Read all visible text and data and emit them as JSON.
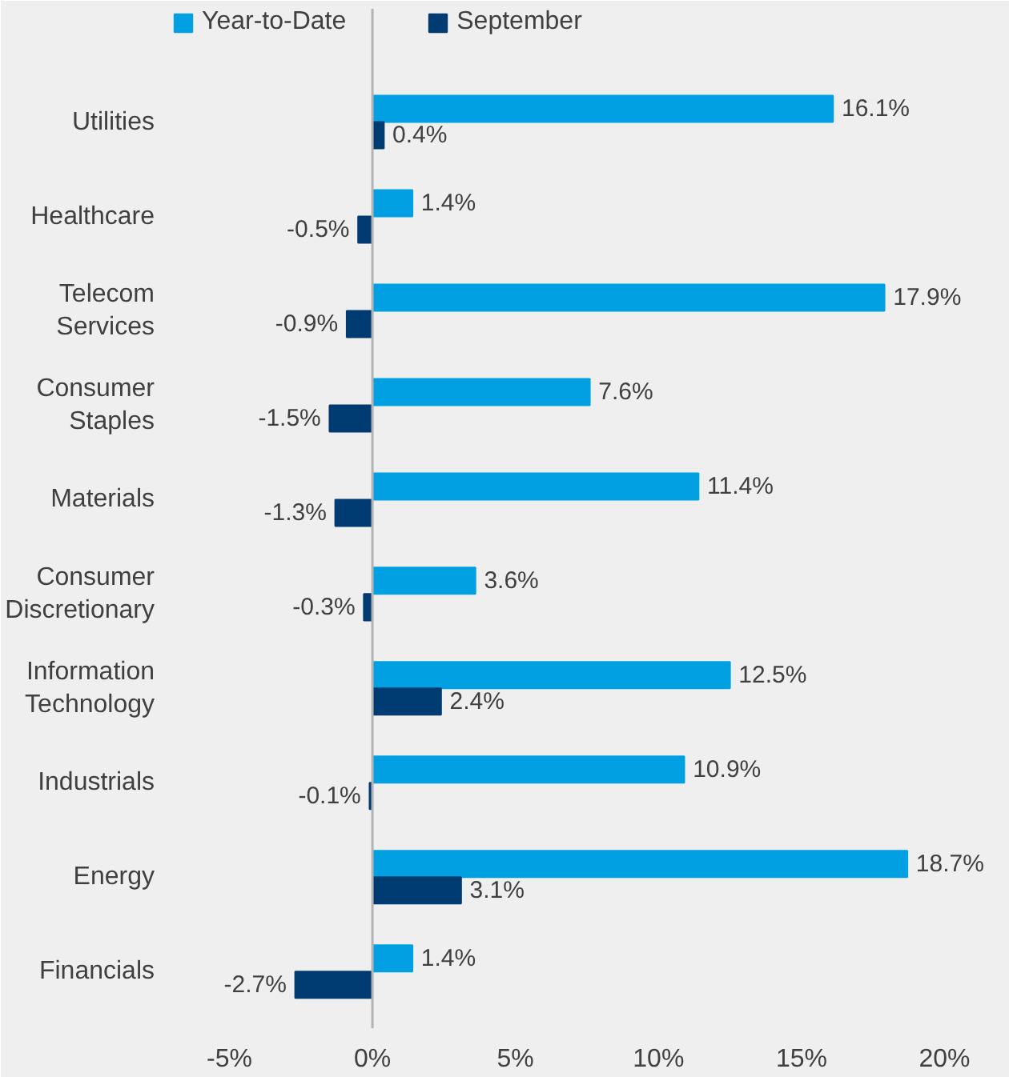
{
  "chart_data": {
    "type": "bar",
    "orientation": "horizontal",
    "categories": [
      "Utilities",
      "Healthcare",
      "Telecom Services",
      "Consumer Staples",
      "Materials",
      "Consumer Discretionary",
      "Information Technology",
      "Industrials",
      "Energy",
      "Financials"
    ],
    "series": [
      {
        "name": "Year-to-Date",
        "color": "#00a0e2",
        "values": [
          16.1,
          1.4,
          17.9,
          7.6,
          11.4,
          3.6,
          12.5,
          10.9,
          18.7,
          1.4
        ],
        "value_labels": [
          "16.1%",
          "1.4%",
          "17.9%",
          "7.6%",
          "11.4%",
          "3.6%",
          "12.5%",
          "10.9%",
          "18.7%",
          "1.4%"
        ]
      },
      {
        "name": "September",
        "color": "#003b71",
        "values": [
          0.4,
          -0.5,
          -0.9,
          -1.5,
          -1.3,
          -0.3,
          2.4,
          -0.1,
          3.1,
          -2.7
        ],
        "value_labels": [
          "0.4%",
          "-0.5%",
          "-0.9%",
          "-1.5%",
          "-1.3%",
          "-0.3%",
          "2.4%",
          "-0.1%",
          "3.1%",
          "-2.7%"
        ]
      }
    ],
    "xlim": [
      -7,
      22
    ],
    "xticks": [
      {
        "value": -5,
        "label": "-5%"
      },
      {
        "value": 0,
        "label": "0%"
      },
      {
        "value": 5,
        "label": "5%"
      },
      {
        "value": 10,
        "label": "10%"
      },
      {
        "value": 15,
        "label": "15%"
      },
      {
        "value": 20,
        "label": "20%"
      }
    ],
    "ref_lines": [
      {
        "axis": "x",
        "value": 0,
        "color": "#b4b4b4"
      }
    ],
    "grid": false,
    "legend": "top left"
  }
}
